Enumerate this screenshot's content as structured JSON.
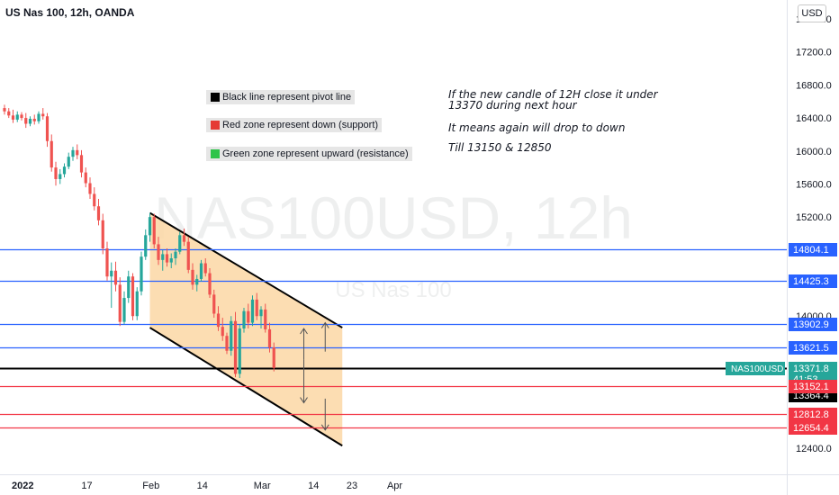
{
  "title": "US Nas 100, 12h, OANDA",
  "currency": "USD",
  "watermark": {
    "symbol": "NAS100USD, 12h",
    "name": "US Nas 100"
  },
  "legend": [
    {
      "label": "Black line represent pivot line",
      "color": "#000000"
    },
    {
      "label": "Red zone represent down (support)",
      "color": "#e53935"
    },
    {
      "label": "Green zone represent upward (resistance)",
      "color": "#2ec44a"
    }
  ],
  "notes": [
    "If the new candle of 12H close it under",
    "13370 during next hour",
    "It means again will drop to down",
    "Till 13150 & 12850"
  ],
  "chart_data": {
    "type": "candlestick",
    "title": "US Nas 100, 12h, OANDA",
    "ylim": [
      12100,
      17800
    ],
    "y_ticks": [
      "12400.0",
      "14000.0",
      "14400.0",
      "15200.0",
      "15600.0",
      "16000.0",
      "16400.0",
      "16800.0",
      "17200.0",
      "17600.0"
    ],
    "x_ticks": [
      {
        "label": "2022",
        "index": 3
      },
      {
        "label": "17",
        "index": 18
      },
      {
        "label": "Feb",
        "index": 33
      },
      {
        "label": "14",
        "index": 45
      },
      {
        "label": "Mar",
        "index": 59
      },
      {
        "label": "14",
        "index": 71
      },
      {
        "label": "23",
        "index": 80
      },
      {
        "label": "Apr",
        "index": 90
      }
    ],
    "x_range": [
      0,
      105
    ],
    "candles": [
      [
        16520,
        16560,
        16440,
        16480
      ],
      [
        16480,
        16520,
        16400,
        16430
      ],
      [
        16430,
        16500,
        16340,
        16380
      ],
      [
        16380,
        16480,
        16350,
        16440
      ],
      [
        16440,
        16470,
        16370,
        16400
      ],
      [
        16400,
        16460,
        16280,
        16330
      ],
      [
        16330,
        16420,
        16300,
        16390
      ],
      [
        16390,
        16440,
        16320,
        16360
      ],
      [
        16360,
        16480,
        16330,
        16450
      ],
      [
        16450,
        16520,
        16380,
        16420
      ],
      [
        16420,
        16460,
        16050,
        16120
      ],
      [
        16120,
        16200,
        15750,
        15800
      ],
      [
        15800,
        15870,
        15580,
        15660
      ],
      [
        15660,
        15780,
        15600,
        15720
      ],
      [
        15720,
        15850,
        15680,
        15810
      ],
      [
        15810,
        15980,
        15780,
        15930
      ],
      [
        15930,
        16050,
        15880,
        16010
      ],
      [
        16010,
        16080,
        15900,
        15950
      ],
      [
        15950,
        16010,
        15680,
        15740
      ],
      [
        15740,
        15800,
        15560,
        15610
      ],
      [
        15610,
        15680,
        15420,
        15480
      ],
      [
        15480,
        15560,
        15280,
        15330
      ],
      [
        15330,
        15420,
        15100,
        15160
      ],
      [
        15160,
        15240,
        14750,
        14820
      ],
      [
        14820,
        14900,
        14430,
        14480
      ],
      [
        14480,
        14650,
        14100,
        14550
      ],
      [
        14550,
        14660,
        14300,
        14380
      ],
      [
        14380,
        14470,
        13880,
        13930
      ],
      [
        13930,
        14300,
        13900,
        14220
      ],
      [
        14220,
        14550,
        14160,
        14480
      ],
      [
        14480,
        14520,
        13950,
        14000
      ],
      [
        14000,
        14350,
        13950,
        14300
      ],
      [
        14300,
        14780,
        14250,
        14720
      ],
      [
        14720,
        15050,
        14680,
        14980
      ],
      [
        14980,
        15250,
        14900,
        15200
      ],
      [
        15200,
        15240,
        14820,
        14870
      ],
      [
        14870,
        14960,
        14620,
        14680
      ],
      [
        14680,
        14800,
        14550,
        14750
      ],
      [
        14750,
        14820,
        14600,
        14650
      ],
      [
        14650,
        14760,
        14580,
        14700
      ],
      [
        14700,
        14820,
        14620,
        14780
      ],
      [
        14780,
        15020,
        14750,
        14980
      ],
      [
        14980,
        15060,
        14850,
        14900
      ],
      [
        14900,
        14960,
        14520,
        14560
      ],
      [
        14560,
        14640,
        14320,
        14380
      ],
      [
        14380,
        14500,
        14300,
        14450
      ],
      [
        14450,
        14680,
        14420,
        14640
      ],
      [
        14640,
        14700,
        14480,
        14520
      ],
      [
        14520,
        14580,
        14220,
        14260
      ],
      [
        14260,
        14320,
        13980,
        14030
      ],
      [
        14030,
        14120,
        13820,
        13870
      ],
      [
        13870,
        13980,
        13700,
        13760
      ],
      [
        13760,
        13800,
        13540,
        13580
      ],
      [
        13580,
        14000,
        13520,
        13940
      ],
      [
        13940,
        14050,
        13260,
        13300
      ],
      [
        13300,
        13900,
        13250,
        13850
      ],
      [
        13850,
        14100,
        13800,
        14060
      ],
      [
        14060,
        14150,
        13850,
        13920
      ],
      [
        13920,
        14250,
        13880,
        14200
      ],
      [
        14200,
        14280,
        13950,
        14000
      ],
      [
        14000,
        14120,
        13850,
        14080
      ],
      [
        14080,
        14150,
        13800,
        13840
      ],
      [
        13840,
        13920,
        13560,
        13620
      ],
      [
        13620,
        13680,
        13330,
        13372
      ]
    ],
    "channel": {
      "upper": [
        [
          34,
          15250
        ],
        [
          79,
          13860
        ]
      ],
      "lower": [
        [
          34,
          13860
        ],
        [
          79,
          12430
        ]
      ],
      "fill": "#fbd7a5",
      "line_color": "#000000"
    },
    "horizontal_lines": [
      {
        "value": 14804.1,
        "color": "#2962ff",
        "label": "14804.1"
      },
      {
        "value": 14425.3,
        "color": "#2962ff",
        "label": "14425.3"
      },
      {
        "value": 13902.9,
        "color": "#2962ff",
        "label": "13902.9"
      },
      {
        "value": 13621.5,
        "color": "#2962ff",
        "label": "13621.5"
      },
      {
        "value": 13371.8,
        "color": "#000000",
        "label": "13371.8"
      },
      {
        "value": 13152.1,
        "color": "#f23645",
        "label": "13152.1"
      },
      {
        "value": 12812.8,
        "color": "#f23645",
        "label": "12812.8"
      },
      {
        "value": 12654.4,
        "color": "#f23645",
        "label": "12654.4"
      }
    ],
    "price_tags": [
      {
        "value": 14804.1,
        "label": "14804.1",
        "bg": "#2962ff"
      },
      {
        "value": 14425.3,
        "label": "14425.3",
        "bg": "#2962ff"
      },
      {
        "value": 13902.9,
        "label": "13902.9",
        "bg": "#2962ff"
      },
      {
        "value": 13621.5,
        "label": "13621.5",
        "bg": "#2962ff"
      },
      {
        "value": 13371.8,
        "label": "13371.8",
        "bg": "#26a69a",
        "sub": "41:53"
      },
      {
        "value": 13364.4,
        "label": "13364.4",
        "bg": "#000000"
      },
      {
        "value": 13152.1,
        "label": "13152.1",
        "bg": "#f23645"
      },
      {
        "value": 12812.8,
        "label": "12812.8",
        "bg": "#f23645"
      },
      {
        "value": 12654.4,
        "label": "12654.4",
        "bg": "#f23645"
      }
    ],
    "symbol_tag": {
      "label": "NAS100USD",
      "bg": "#26a69a"
    },
    "arrows": [
      {
        "index": 70,
        "from": 13470,
        "to": 13850
      },
      {
        "index": 70,
        "from": 13470,
        "to": 12950
      },
      {
        "index": 75,
        "from": 13570,
        "to": 13920
      },
      {
        "index": 75,
        "from": 13000,
        "to": 12620
      }
    ],
    "colors": {
      "up": "#26a69a",
      "down": "#ef5350"
    }
  }
}
